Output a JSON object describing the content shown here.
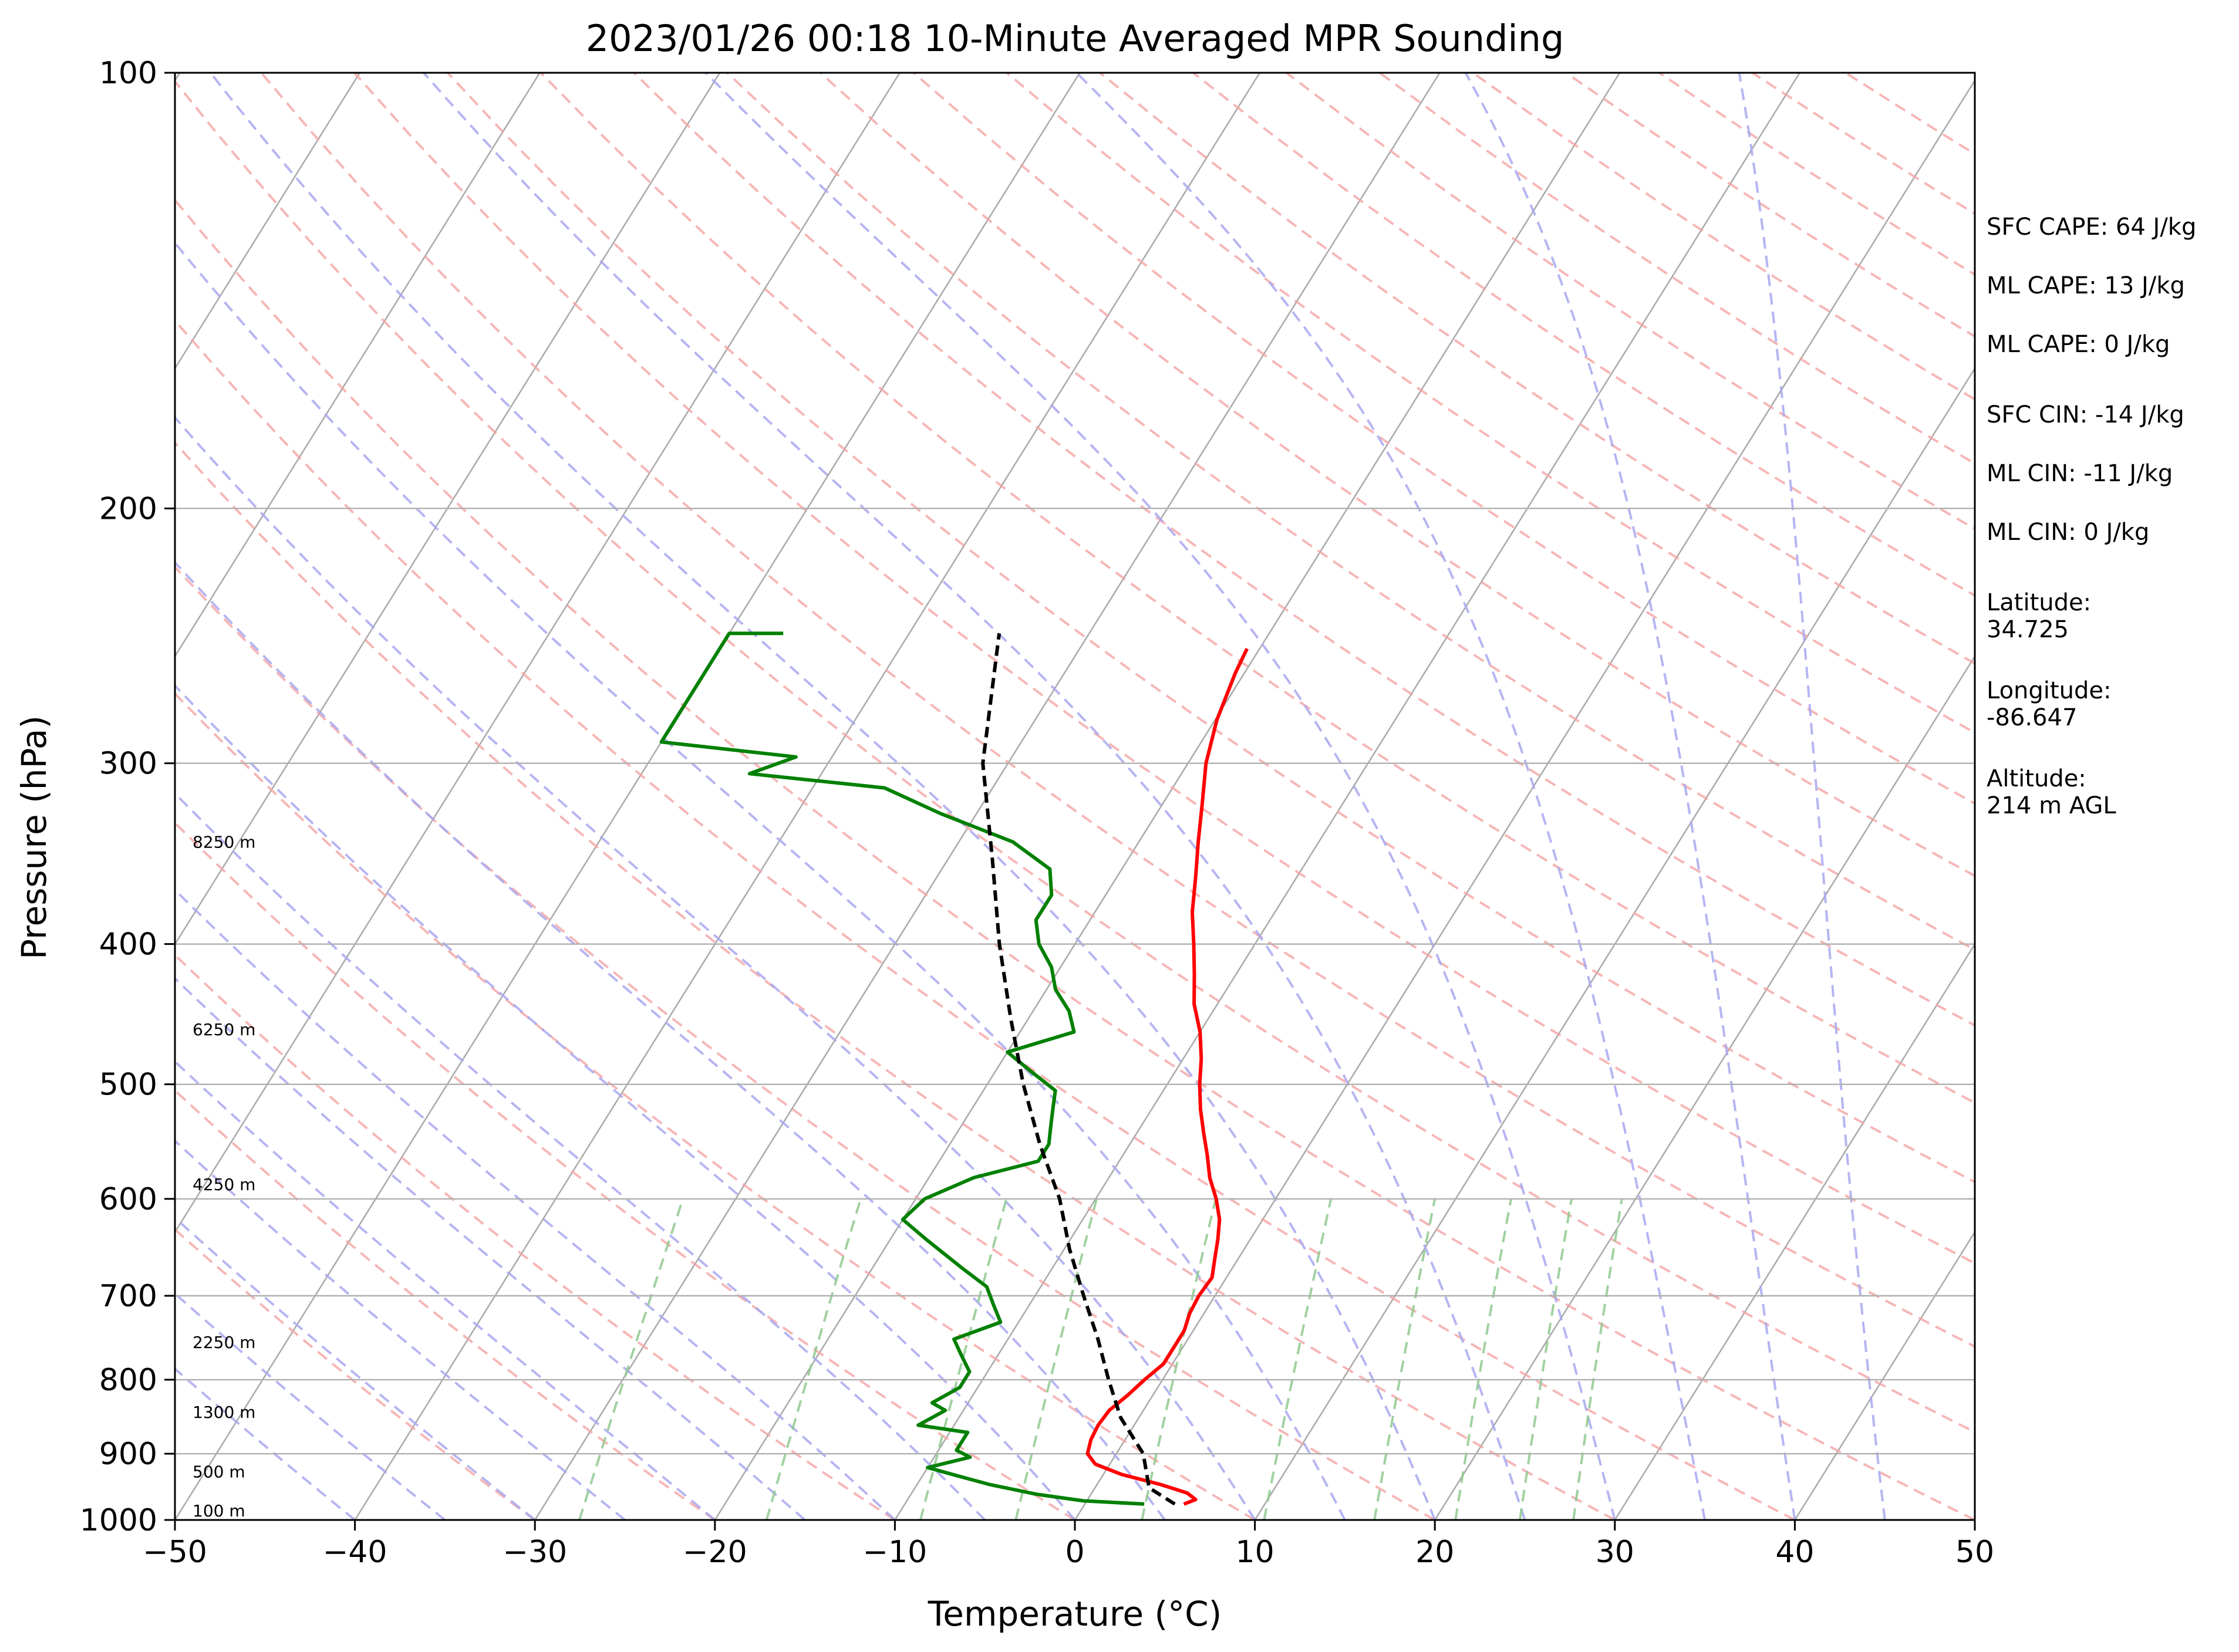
{
  "chart_data": {
    "type": "line",
    "title": "2023/01/26 00:18 10-Minute Averaged MPR Sounding",
    "xlabel": "Temperature (°C)",
    "ylabel": "Pressure (hPa)",
    "xlim": [
      -50,
      50
    ],
    "ylim": [
      1000,
      100
    ],
    "y_scale": "log",
    "x_ticks": [
      -50,
      -40,
      -30,
      -20,
      -10,
      0,
      10,
      20,
      30,
      40,
      50
    ],
    "x_tick_labels": [
      "−50",
      "−40",
      "−30",
      "−20",
      "−10",
      "0",
      "10",
      "20",
      "30",
      "40",
      "50"
    ],
    "y_ticks": [
      1000,
      900,
      800,
      700,
      600,
      500,
      400,
      300,
      200,
      100
    ],
    "y_tick_labels": [
      "1000",
      "900",
      "800",
      "700",
      "600",
      "500",
      "400",
      "300",
      "200",
      "100"
    ],
    "grid": "horizontal at pressure ticks",
    "colors": {
      "temperature": "#ff0000",
      "dewpoint": "#008000",
      "parcel": "#000000",
      "isotherms": "#a6a6a6",
      "dry_adiabats": "#f4a4a4",
      "moist_adiabats": "#a8a8f0",
      "mixing_ratio": "#8fc98f"
    },
    "series": [
      {
        "key": "temperature",
        "points": [
          {
            "p": 975,
            "t": 5.5
          },
          {
            "p": 968,
            "t": 6.0
          },
          {
            "p": 958,
            "t": 5.3
          },
          {
            "p": 945,
            "t": 3.5
          },
          {
            "p": 930,
            "t": 1.0
          },
          {
            "p": 915,
            "t": -0.8
          },
          {
            "p": 900,
            "t": -1.6
          },
          {
            "p": 880,
            "t": -1.9
          },
          {
            "p": 860,
            "t": -2.0
          },
          {
            "p": 840,
            "t": -1.9
          },
          {
            "p": 820,
            "t": -1.4
          },
          {
            "p": 800,
            "t": -1.0
          },
          {
            "p": 780,
            "t": -0.5
          },
          {
            "p": 760,
            "t": -0.5
          },
          {
            "p": 740,
            "t": -0.5
          },
          {
            "p": 720,
            "t": -0.8
          },
          {
            "p": 700,
            "t": -0.9
          },
          {
            "p": 680,
            "t": -0.8
          },
          {
            "p": 660,
            "t": -1.3
          },
          {
            "p": 640,
            "t": -1.8
          },
          {
            "p": 620,
            "t": -2.4
          },
          {
            "p": 600,
            "t": -3.3
          },
          {
            "p": 580,
            "t": -4.4
          },
          {
            "p": 560,
            "t": -5.3
          },
          {
            "p": 540,
            "t": -6.3
          },
          {
            "p": 520,
            "t": -7.3
          },
          {
            "p": 500,
            "t": -8.2
          },
          {
            "p": 480,
            "t": -9.0
          },
          {
            "p": 460,
            "t": -10.0
          },
          {
            "p": 440,
            "t": -11.3
          },
          {
            "p": 420,
            "t": -12.3
          },
          {
            "p": 400,
            "t": -13.4
          },
          {
            "p": 380,
            "t": -14.6
          },
          {
            "p": 360,
            "t": -15.6
          },
          {
            "p": 340,
            "t": -16.7
          },
          {
            "p": 320,
            "t": -17.8
          },
          {
            "p": 300,
            "t": -19.0
          },
          {
            "p": 280,
            "t": -19.9
          },
          {
            "p": 260,
            "t": -20.5
          },
          {
            "p": 250,
            "t": -20.7
          }
        ]
      },
      {
        "key": "dewpoint",
        "points": [
          {
            "p": 975,
            "t": 3.3
          },
          {
            "p": 970,
            "t": -0.2
          },
          {
            "p": 960,
            "t": -3.0
          },
          {
            "p": 945,
            "t": -6.0
          },
          {
            "p": 930,
            "t": -8.4
          },
          {
            "p": 920,
            "t": -10.0
          },
          {
            "p": 905,
            "t": -8.0
          },
          {
            "p": 895,
            "t": -9.0
          },
          {
            "p": 880,
            "t": -9.0
          },
          {
            "p": 870,
            "t": -9.0
          },
          {
            "p": 860,
            "t": -12.0
          },
          {
            "p": 840,
            "t": -11.0
          },
          {
            "p": 830,
            "t": -12.0
          },
          {
            "p": 810,
            "t": -11.0
          },
          {
            "p": 790,
            "t": -11.0
          },
          {
            "p": 770,
            "t": -12.0
          },
          {
            "p": 750,
            "t": -13.0
          },
          {
            "p": 730,
            "t": -11.0
          },
          {
            "p": 710,
            "t": -12.0
          },
          {
            "p": 690,
            "t": -13.0
          },
          {
            "p": 670,
            "t": -15.0
          },
          {
            "p": 640,
            "t": -18.0
          },
          {
            "p": 620,
            "t": -20.0
          },
          {
            "p": 600,
            "t": -19.5
          },
          {
            "p": 580,
            "t": -17.5
          },
          {
            "p": 565,
            "t": -14.5
          },
          {
            "p": 550,
            "t": -14.5
          },
          {
            "p": 535,
            "t": -15.0
          },
          {
            "p": 520,
            "t": -15.5
          },
          {
            "p": 505,
            "t": -16.0
          },
          {
            "p": 490,
            "t": -18.0
          },
          {
            "p": 475,
            "t": -20.0
          },
          {
            "p": 460,
            "t": -17.0
          },
          {
            "p": 445,
            "t": -18.0
          },
          {
            "p": 430,
            "t": -19.5
          },
          {
            "p": 415,
            "t": -20.5
          },
          {
            "p": 400,
            "t": -22.0
          },
          {
            "p": 385,
            "t": -23.0
          },
          {
            "p": 370,
            "t": -23.0
          },
          {
            "p": 355,
            "t": -24.0
          },
          {
            "p": 340,
            "t": -27.0
          },
          {
            "p": 325,
            "t": -32.0
          },
          {
            "p": 312,
            "t": -36.0
          },
          {
            "p": 305,
            "t": -44.0
          },
          {
            "p": 297,
            "t": -42.0
          },
          {
            "p": 290,
            "t": -50.0
          },
          {
            "p": 244,
            "t": -50.0
          },
          {
            "p": 244,
            "t": -47.0
          }
        ]
      },
      {
        "key": "parcel",
        "points": [
          {
            "p": 975,
            "t": 5.0
          },
          {
            "p": 950,
            "t": 3.0
          },
          {
            "p": 900,
            "t": 1.5
          },
          {
            "p": 850,
            "t": -1.0
          },
          {
            "p": 800,
            "t": -3.0
          },
          {
            "p": 750,
            "t": -5.0
          },
          {
            "p": 700,
            "t": -7.3
          },
          {
            "p": 650,
            "t": -9.7
          },
          {
            "p": 600,
            "t": -12.0
          },
          {
            "p": 550,
            "t": -15.0
          },
          {
            "p": 500,
            "t": -18.0
          },
          {
            "p": 450,
            "t": -21.0
          },
          {
            "p": 400,
            "t": -24.2
          },
          {
            "p": 350,
            "t": -27.5
          },
          {
            "p": 300,
            "t": -31.4
          },
          {
            "p": 244,
            "t": -35.0
          }
        ]
      }
    ],
    "height_labels": [
      {
        "p": 1000,
        "text": "100 m"
      },
      {
        "p": 940,
        "text": "500 m"
      },
      {
        "p": 855,
        "text": "1300 m"
      },
      {
        "p": 765,
        "text": "2250 m"
      },
      {
        "p": 595,
        "text": "4250 m"
      },
      {
        "p": 465,
        "text": "6250 m"
      },
      {
        "p": 345,
        "text": "8250 m"
      }
    ]
  },
  "side_panel": [
    "SFC CAPE: 64 J/kg",
    "ML CAPE: 13 J/kg",
    "ML CAPE: 0 J/kg",
    "SFC CIN: -14 J/kg",
    "ML CIN: -11 J/kg",
    "ML CIN: 0 J/kg",
    "Latitude:\n34.725",
    "Longitude:\n-86.647",
    "Altitude:\n214 m AGL"
  ]
}
